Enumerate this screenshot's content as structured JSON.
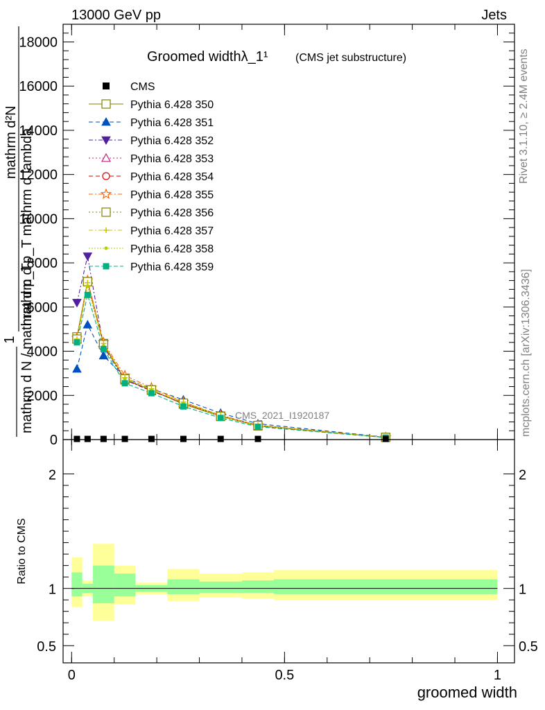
{
  "header": {
    "left": "13000 GeV pp",
    "right": "Jets"
  },
  "side_labels": {
    "top": "Rivet 3.1.10, ≥ 2.4M events",
    "bottom": "mcplots.cern.ch [arXiv:1306.3436]"
  },
  "watermark": "CMS_2021_I1920187",
  "chart_data": [
    {
      "type": "line",
      "title": "Groomed widthλ_1¹",
      "subtitle": "(CMS jet substructure)",
      "ylabel_lines": [
        "mathrm d²N",
        "mathrm d p_T mathrm d lambda",
        "1",
        "mathrm d N / mathrm d p_T"
      ],
      "xlim": [
        -0.02,
        1.04
      ],
      "ylim": [
        0,
        18800
      ],
      "yticks": [
        {
          "value": 0,
          "label": "0"
        },
        {
          "value": 2000,
          "label": "2000"
        },
        {
          "value": 4000,
          "label": "4000"
        },
        {
          "value": 6000,
          "label": "6000"
        },
        {
          "value": 8000,
          "label": "8000"
        },
        {
          "value": 10000,
          "label": "10000"
        },
        {
          "value": 12000,
          "label": "12000"
        },
        {
          "value": 14000,
          "label": "14000"
        },
        {
          "value": 16000,
          "label": "16000"
        },
        {
          "value": 18000,
          "label": "18000"
        }
      ],
      "bin_edges": [
        0,
        0.025,
        0.05,
        0.1,
        0.15,
        0.225,
        0.3,
        0.4,
        0.475,
        1.0
      ],
      "x": [
        0.0125,
        0.0375,
        0.075,
        0.125,
        0.1875,
        0.2625,
        0.35,
        0.4375,
        0.7375
      ],
      "cms": [
        30,
        30,
        30,
        30,
        30,
        30,
        30,
        30,
        30
      ],
      "series": [
        {
          "name": "Pythia 6.428 350",
          "color": "#808000",
          "dash": "",
          "marker": "square-open",
          "values": [
            4650,
            7150,
            4350,
            2700,
            2250,
            1600,
            1050,
            620,
            100
          ]
        },
        {
          "name": "Pythia 6.428 351",
          "color": "#0050c0",
          "dash": "6,4",
          "marker": "triangle-up",
          "values": [
            3200,
            5200,
            3800,
            2800,
            2300,
            1800,
            1200,
            720,
            110
          ]
        },
        {
          "name": "Pythia 6.428 352",
          "color": "#5020a0",
          "dash": "6,3,2,3",
          "marker": "triangle-down",
          "values": [
            6200,
            8300,
            4200,
            2700,
            2200,
            1650,
            1100,
            650,
            100
          ]
        },
        {
          "name": "Pythia 6.428 353",
          "color": "#c02080",
          "dash": "2,3",
          "marker": "triangle-open",
          "values": [
            4550,
            7200,
            4300,
            2750,
            2200,
            1650,
            1050,
            630,
            100
          ]
        },
        {
          "name": "Pythia 6.428 354",
          "color": "#e00000",
          "dash": "6,4",
          "marker": "circle-open",
          "values": [
            4500,
            7150,
            4250,
            2750,
            2200,
            1650,
            1050,
            620,
            100
          ]
        },
        {
          "name": "Pythia 6.428 355",
          "color": "#ff6600",
          "dash": "6,3,2,3",
          "marker": "star-open",
          "values": [
            4600,
            7200,
            4400,
            2900,
            2350,
            1700,
            1100,
            650,
            100
          ]
        },
        {
          "name": "Pythia 6.428 356",
          "color": "#808000",
          "dash": "2,3",
          "marker": "square-open",
          "values": [
            4550,
            7150,
            4300,
            2750,
            2250,
            1650,
            1050,
            640,
            100
          ]
        },
        {
          "name": "Pythia 6.428 357",
          "color": "#d0c000",
          "dash": "6,3,2,3",
          "marker": "cross",
          "values": [
            4550,
            7100,
            4350,
            2800,
            2300,
            1700,
            1080,
            650,
            100
          ]
        },
        {
          "name": "Pythia 6.428 358",
          "color": "#b0d000",
          "dash": "2,2",
          "marker": "dot",
          "values": [
            4500,
            6950,
            4250,
            2750,
            2250,
            1650,
            1050,
            620,
            100
          ]
        },
        {
          "name": "Pythia 6.428 359",
          "color": "#00b080",
          "dash": "6,3",
          "marker": "square-filled",
          "values": [
            4400,
            6550,
            4100,
            2550,
            2100,
            1500,
            980,
            580,
            90
          ]
        }
      ],
      "legend": {
        "cms_label": "CMS",
        "placement": "top-left"
      }
    },
    {
      "type": "area",
      "ylabel": "Ratio to CMS",
      "xlabel": "groomed width",
      "xlim": [
        -0.02,
        1.04
      ],
      "ylim": [
        0.35,
        2.3
      ],
      "xticks": [
        {
          "value": 0,
          "label": "0"
        },
        {
          "value": 0.5,
          "label": "0.5"
        },
        {
          "value": 1,
          "label": "1"
        }
      ],
      "yticks": [
        {
          "value": 0.5,
          "label": "0.5"
        },
        {
          "value": 1,
          "label": "1"
        },
        {
          "value": 2,
          "label": "2"
        }
      ],
      "bin_edges": [
        0,
        0.025,
        0.05,
        0.1,
        0.15,
        0.225,
        0.3,
        0.4,
        0.475,
        1.0
      ],
      "outer_band": [
        [
          0.84,
          1.27
        ],
        [
          0.93,
          1.07
        ],
        [
          0.72,
          1.39
        ],
        [
          0.86,
          1.2
        ],
        [
          0.95,
          1.05
        ],
        [
          0.89,
          1.17
        ],
        [
          0.92,
          1.13
        ],
        [
          0.91,
          1.14
        ],
        [
          0.9,
          1.16
        ]
      ],
      "inner_band": [
        [
          0.93,
          1.14
        ],
        [
          0.96,
          1.04
        ],
        [
          0.87,
          1.2
        ],
        [
          0.93,
          1.13
        ],
        [
          0.97,
          1.03
        ],
        [
          0.95,
          1.08
        ],
        [
          0.96,
          1.06
        ],
        [
          0.96,
          1.07
        ],
        [
          0.95,
          1.08
        ]
      ],
      "band_colors": {
        "outer": "#ffff99",
        "inner": "#99ff99"
      },
      "reference": 1
    }
  ]
}
